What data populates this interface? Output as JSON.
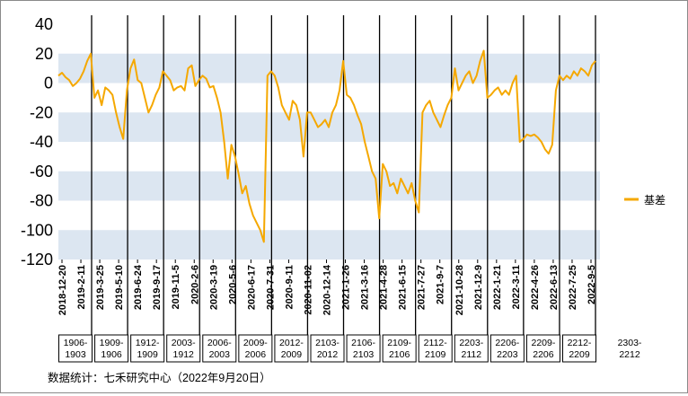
{
  "chart_data": {
    "type": "line",
    "title": "",
    "xlabel": "",
    "ylabel": "",
    "ylim": [
      -120,
      40
    ],
    "yticks": [
      40,
      20,
      0,
      -20,
      -40,
      -60,
      -80,
      -100,
      -120
    ],
    "grid": "alternating horizontal bands",
    "legend_position": "right",
    "x_tick_labels": [
      "2018-12-20",
      "2019-2-11",
      "2019-3-25",
      "2019-5-10",
      "2019-6-24",
      "2019-9-17",
      "2019-11-5",
      "2020-2-6",
      "2020-3-19",
      "2020-5-6",
      "2020-6-17",
      "2020-7-31",
      "2020-9-11",
      "2020-11-02",
      "2020-12-14",
      "2021-1-26",
      "2021-3-16",
      "2021-4-28",
      "2021-6-15",
      "2021-7-27",
      "2021-9-7",
      "2021-10-28",
      "2021-12-9",
      "2022-1-21",
      "2022-3-11",
      "2022-4-26",
      "2022-6-13",
      "2022-7-25",
      "2022-9-5"
    ],
    "series": [
      {
        "name": "基差",
        "color": "#f5a800",
        "values": [
          5,
          7,
          4,
          2,
          -2,
          0,
          3,
          8,
          15,
          20,
          -10,
          -5,
          -15,
          -3,
          -5,
          -8,
          -20,
          -30,
          -38,
          -5,
          10,
          16,
          2,
          0,
          -10,
          -20,
          -15,
          -8,
          -3,
          8,
          5,
          2,
          -5,
          -3,
          -2,
          -5,
          10,
          12,
          -2,
          2,
          5,
          3,
          -3,
          -2,
          -10,
          -20,
          -40,
          -65,
          -42,
          -50,
          -62,
          -75,
          -70,
          -82,
          -90,
          -95,
          -100,
          -108,
          5,
          8,
          5,
          -3,
          -15,
          -20,
          -25,
          -12,
          -15,
          -25,
          -50,
          -20,
          -20,
          -25,
          -30,
          -28,
          -25,
          -30,
          -20,
          -15,
          -5,
          15,
          -8,
          -10,
          -15,
          -22,
          -28,
          -40,
          -50,
          -60,
          -65,
          -92,
          -55,
          -60,
          -70,
          -68,
          -75,
          -65,
          -70,
          -75,
          -68,
          -80,
          -88,
          -20,
          -15,
          -12,
          -20,
          -25,
          -30,
          -22,
          -15,
          -10,
          10,
          -5,
          0,
          5,
          8,
          0,
          5,
          15,
          22,
          -10,
          -8,
          -5,
          -3,
          -8,
          -5,
          -8,
          0,
          5,
          -40,
          -38,
          -35,
          -36,
          -35,
          -37,
          -40,
          -45,
          -48,
          -42,
          -5,
          5,
          2,
          5,
          3,
          8,
          5,
          10,
          8,
          5,
          12,
          15
        ]
      }
    ],
    "contract_labels": [
      [
        "1906-",
        "1903"
      ],
      [
        "1909-",
        "1906"
      ],
      [
        "1912-",
        "1909"
      ],
      [
        "2003-",
        "1912"
      ],
      [
        "2006-",
        "2003"
      ],
      [
        "2009-",
        "2006"
      ],
      [
        "2012-",
        "2009"
      ],
      [
        "2103-",
        "2012"
      ],
      [
        "2106-",
        "2103"
      ],
      [
        "2109-",
        "2106"
      ],
      [
        "2112-",
        "2109"
      ],
      [
        "2203-",
        "2112"
      ],
      [
        "2206-",
        "2203"
      ],
      [
        "2209-",
        "2206"
      ],
      [
        "2212-",
        "2209"
      ],
      [
        "2303-",
        "2212"
      ]
    ]
  },
  "footer": {
    "source": "数据统计：七禾研究中心（2022年9月20日）"
  }
}
